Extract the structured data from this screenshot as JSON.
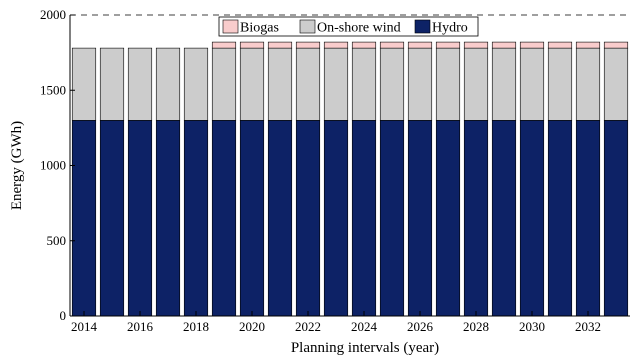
{
  "chart_data": {
    "type": "bar",
    "stacked": true,
    "categories": [
      "2014",
      "2015",
      "2016",
      "2017",
      "2018",
      "2019",
      "2020",
      "2021",
      "2022",
      "2023",
      "2024",
      "2025",
      "2026",
      "2027",
      "2028",
      "2029",
      "2030",
      "2031",
      "2032",
      "2033"
    ],
    "x_tick_labels": [
      "2014",
      "2016",
      "2018",
      "2020",
      "2022",
      "2024",
      "2026",
      "2028",
      "2030",
      "2032"
    ],
    "series": [
      {
        "name": "Hydro",
        "color": "#0d2266",
        "values": [
          1300,
          1300,
          1300,
          1300,
          1300,
          1300,
          1300,
          1300,
          1300,
          1300,
          1300,
          1300,
          1300,
          1300,
          1300,
          1300,
          1300,
          1300,
          1300,
          1300
        ]
      },
      {
        "name": "On-shore wind",
        "color": "#cccccc",
        "values": [
          480,
          480,
          480,
          480,
          480,
          480,
          480,
          480,
          480,
          480,
          480,
          480,
          480,
          480,
          480,
          480,
          480,
          480,
          480,
          480
        ]
      },
      {
        "name": "Biogas",
        "color": "#f9cccc",
        "values": [
          0,
          0,
          0,
          0,
          0,
          40,
          40,
          40,
          40,
          40,
          40,
          40,
          40,
          40,
          40,
          40,
          40,
          40,
          40,
          40
        ]
      }
    ],
    "legend_order": [
      "Biogas",
      "On-shore wind",
      "Hydro"
    ],
    "reference_line": {
      "value": 2000,
      "style": "dashed"
    },
    "xlabel": "Planning intervals (year)",
    "ylabel": "Energy (GWh)",
    "ylim": [
      0,
      2000
    ],
    "y_ticks": [
      0,
      500,
      1000,
      1500,
      2000
    ],
    "legend_position": "top-right",
    "grid": false
  }
}
